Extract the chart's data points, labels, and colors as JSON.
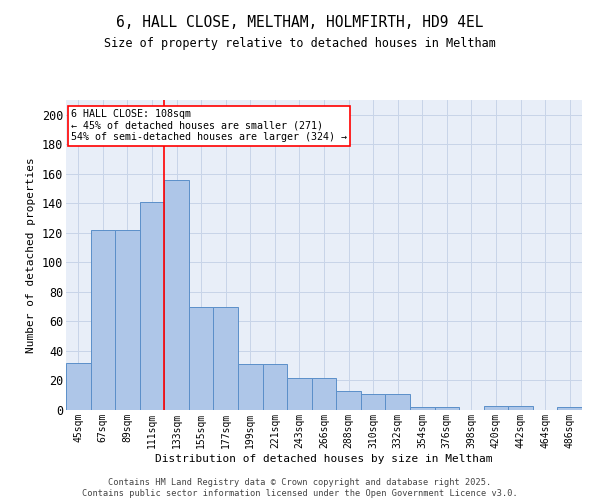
{
  "title": "6, HALL CLOSE, MELTHAM, HOLMFIRTH, HD9 4EL",
  "subtitle": "Size of property relative to detached houses in Meltham",
  "xlabel": "Distribution of detached houses by size in Meltham",
  "ylabel": "Number of detached properties",
  "categories": [
    "45sqm",
    "67sqm",
    "89sqm",
    "111sqm",
    "133sqm",
    "155sqm",
    "177sqm",
    "199sqm",
    "221sqm",
    "243sqm",
    "266sqm",
    "288sqm",
    "310sqm",
    "332sqm",
    "354sqm",
    "376sqm",
    "398sqm",
    "420sqm",
    "442sqm",
    "464sqm",
    "486sqm"
  ],
  "values": [
    32,
    122,
    122,
    141,
    156,
    70,
    70,
    31,
    31,
    22,
    22,
    13,
    11,
    11,
    2,
    2,
    0,
    3,
    3,
    0,
    2
  ],
  "bar_color": "#aec6e8",
  "bar_edge_color": "#5b8fc9",
  "vline_x": 3.5,
  "vline_color": "red",
  "annotation_text": "6 HALL CLOSE: 108sqm\n← 45% of detached houses are smaller (271)\n54% of semi-detached houses are larger (324) →",
  "annotation_box_color": "white",
  "annotation_box_edge": "red",
  "ylim": [
    0,
    210
  ],
  "yticks": [
    0,
    20,
    40,
    60,
    80,
    100,
    120,
    140,
    160,
    180,
    200
  ],
  "grid_color": "#c8d4e8",
  "background_color": "#e8eef8",
  "footer_line1": "Contains HM Land Registry data © Crown copyright and database right 2025.",
  "footer_line2": "Contains public sector information licensed under the Open Government Licence v3.0."
}
